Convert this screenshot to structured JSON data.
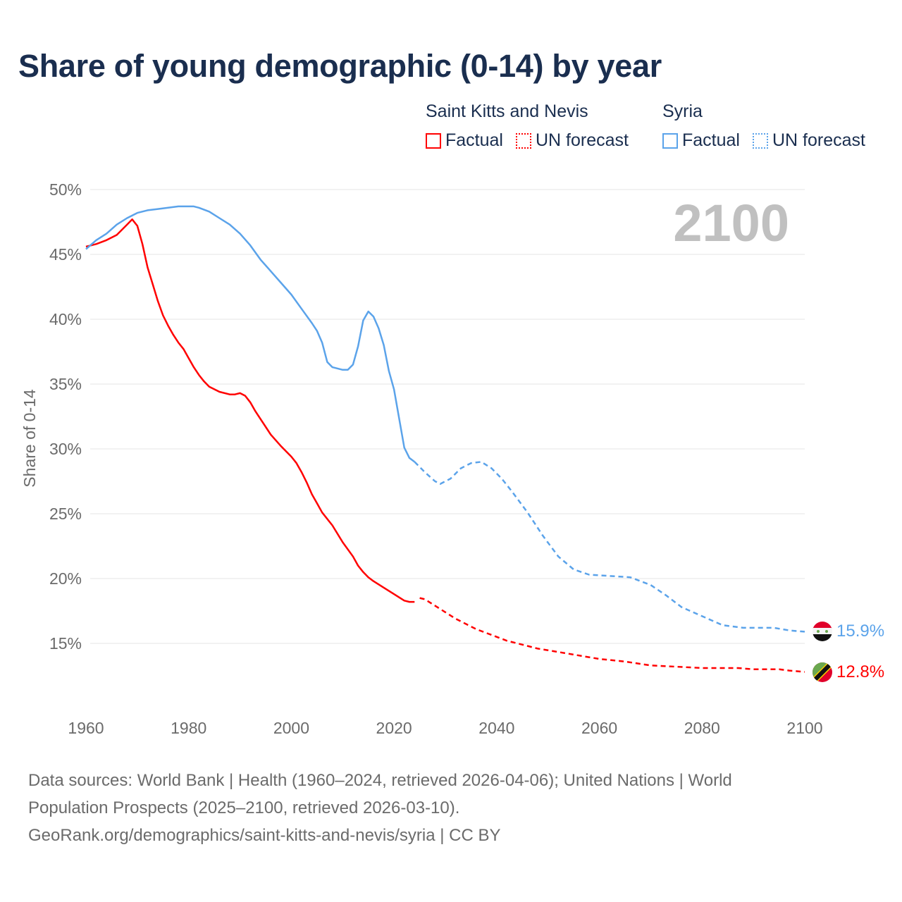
{
  "title": "Share of young demographic (0-14) by year",
  "legend": {
    "groups": [
      {
        "name": "Saint Kitts and Nevis",
        "color": "#ff0000",
        "factual": "Factual",
        "forecast": "UN forecast"
      },
      {
        "name": "Syria",
        "color": "#5ba3ea",
        "factual": "Factual",
        "forecast": "UN forecast"
      }
    ]
  },
  "year_watermark": "2100",
  "sources": {
    "line1": "Data sources: World Bank | Health (1960–2024, retrieved 2026-04-06); United Nations | World",
    "line2": "Population Prospects (2025–2100, retrieved 2026-03-10).",
    "line3": "GeoRank.org/demographics/saint-kitts-and-nevis/syria | CC BY"
  },
  "chart_data": {
    "type": "line",
    "title": "Share of young demographic (0-14) by year",
    "xlabel": "",
    "ylabel": "Share of 0-14",
    "xlim": [
      1960,
      2100
    ],
    "ylim": [
      10,
      50
    ],
    "xticks": [
      "1960",
      "1980",
      "2000",
      "2020",
      "2040",
      "2060",
      "2080",
      "2100"
    ],
    "yticks": [
      "15%",
      "20%",
      "25%",
      "30%",
      "35%",
      "40%",
      "45%",
      "50%"
    ],
    "grid": true,
    "legend_position": "top-right",
    "series": [
      {
        "name": "Saint Kitts and Nevis",
        "color": "#ff0000",
        "end_label": "12.8%",
        "factual": {
          "x": [
            1960,
            1962,
            1964,
            1966,
            1968,
            1969,
            1970,
            1971,
            1972,
            1973,
            1974,
            1975,
            1976,
            1977,
            1978,
            1979,
            1980,
            1981,
            1982,
            1983,
            1984,
            1986,
            1988,
            1989,
            1990,
            1991,
            1992,
            1993,
            1996,
            1998,
            2000,
            2001,
            2002,
            2003,
            2004,
            2005,
            2006,
            2008,
            2010,
            2012,
            2013,
            2014,
            2015,
            2016,
            2018,
            2020,
            2022,
            2023,
            2024
          ],
          "y": [
            45.6,
            45.8,
            46.1,
            46.5,
            47.3,
            47.7,
            47.2,
            45.8,
            44.0,
            42.7,
            41.4,
            40.3,
            39.5,
            38.8,
            38.2,
            37.7,
            37.0,
            36.3,
            35.7,
            35.2,
            34.8,
            34.4,
            34.2,
            34.2,
            34.3,
            34.1,
            33.6,
            32.9,
            31.1,
            30.2,
            29.4,
            28.9,
            28.2,
            27.4,
            26.5,
            25.8,
            25.1,
            24.1,
            22.8,
            21.7,
            21.0,
            20.5,
            20.1,
            19.8,
            19.3,
            18.8,
            18.3,
            18.2,
            18.2
          ]
        },
        "forecast": {
          "x": [
            2025,
            2026,
            2028,
            2030,
            2032,
            2034,
            2036,
            2038,
            2040,
            2042,
            2045,
            2048,
            2051,
            2054,
            2057,
            2060,
            2065,
            2070,
            2075,
            2080,
            2087,
            2090,
            2095,
            2097,
            2100
          ],
          "y": [
            18.5,
            18.4,
            17.9,
            17.4,
            16.9,
            16.5,
            16.1,
            15.8,
            15.5,
            15.2,
            14.9,
            14.6,
            14.4,
            14.2,
            14.0,
            13.8,
            13.6,
            13.3,
            13.2,
            13.1,
            13.1,
            13.0,
            13.0,
            12.9,
            12.8
          ]
        }
      },
      {
        "name": "Syria",
        "color": "#5ba3ea",
        "end_label": "15.9%",
        "factual": {
          "x": [
            1960,
            1962,
            1964,
            1966,
            1968,
            1970,
            1972,
            1974,
            1976,
            1978,
            1981,
            1982,
            1984,
            1986,
            1988,
            1990,
            1992,
            1994,
            1996,
            1998,
            2000,
            2002,
            2004,
            2005,
            2006,
            2007,
            2008,
            2010,
            2011,
            2012,
            2013,
            2014,
            2015,
            2016,
            2017,
            2018,
            2019,
            2020,
            2022,
            2023,
            2024
          ],
          "y": [
            45.4,
            46.1,
            46.6,
            47.3,
            47.8,
            48.2,
            48.4,
            48.5,
            48.6,
            48.7,
            48.7,
            48.6,
            48.3,
            47.8,
            47.3,
            46.6,
            45.7,
            44.6,
            43.7,
            42.8,
            41.9,
            40.8,
            39.7,
            39.1,
            38.2,
            36.7,
            36.3,
            36.1,
            36.1,
            36.5,
            37.9,
            39.9,
            40.6,
            40.2,
            39.3,
            38.0,
            36.0,
            34.6,
            30.1,
            29.3,
            29.0
          ]
        },
        "forecast": {
          "x": [
            2024,
            2026,
            2028,
            2029,
            2031,
            2033,
            2035,
            2037,
            2039,
            2041,
            2043,
            2046,
            2049,
            2052,
            2055,
            2058,
            2062,
            2066,
            2070,
            2073,
            2076,
            2080,
            2084,
            2088,
            2094,
            2097,
            2100
          ],
          "y": [
            29.0,
            28.2,
            27.5,
            27.3,
            27.7,
            28.5,
            28.9,
            29.0,
            28.5,
            27.7,
            26.7,
            25.1,
            23.3,
            21.7,
            20.7,
            20.3,
            20.2,
            20.1,
            19.5,
            18.7,
            17.8,
            17.1,
            16.4,
            16.2,
            16.2,
            16.0,
            15.9
          ]
        }
      }
    ]
  }
}
